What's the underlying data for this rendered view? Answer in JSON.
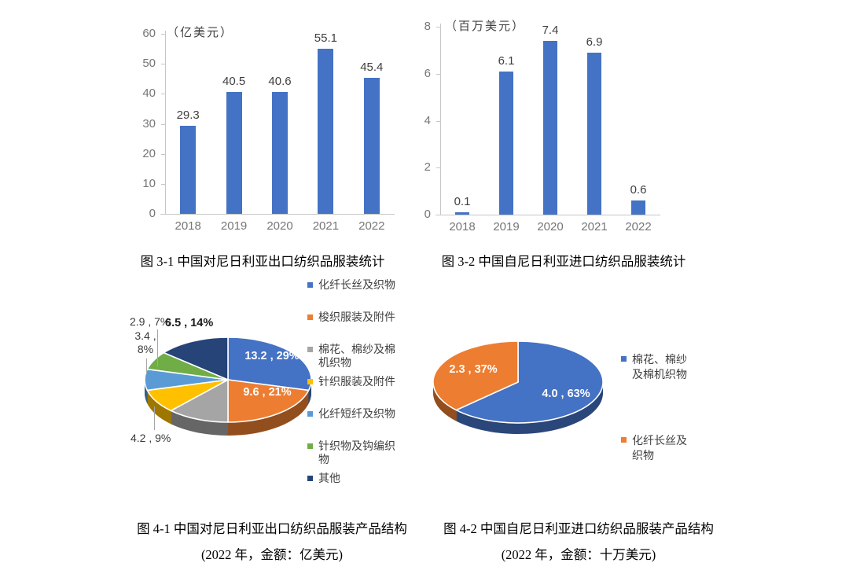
{
  "page": {
    "background": "#ffffff"
  },
  "captions": {
    "fig31": "图 3-1  中国对尼日利亚出口纺织品服装统计",
    "fig32": "图 3-2  中国自尼日利亚进口纺织品服装统计",
    "fig41_line1": "图 4-1  中国对尼日利亚出口纺织品服装产品结构",
    "fig41_line2": "(2022 年，金额：亿美元)",
    "fig42_line1": "图 4-2  中国自尼日利亚进口纺织品服装产品结构",
    "fig42_line2": "(2022 年，金额：十万美元)"
  },
  "chart_data": [
    {
      "id": "fig3-1",
      "type": "bar",
      "title": "图 3-1 中国对尼日利亚出口纺织品服装统计",
      "unit_label": "（亿美元）",
      "categories": [
        "2018",
        "2019",
        "2020",
        "2021",
        "2022"
      ],
      "values": [
        29.3,
        40.5,
        40.6,
        55.1,
        45.4
      ],
      "data_labels": [
        "29.3",
        "40.5",
        "40.6",
        "55.1",
        "45.4"
      ],
      "ylim": [
        0,
        60
      ],
      "yticks": [
        0,
        10,
        20,
        30,
        40,
        50,
        60
      ],
      "bar_color": "#4472C4",
      "grid": false,
      "legend_position": "none"
    },
    {
      "id": "fig3-2",
      "type": "bar",
      "title": "图 3-2 中国自尼日利亚进口纺织品服装统计",
      "unit_label": "（百万美元）",
      "categories": [
        "2018",
        "2019",
        "2020",
        "2021",
        "2022"
      ],
      "values": [
        0.1,
        6.1,
        7.4,
        6.9,
        0.6
      ],
      "data_labels": [
        "0.1",
        "6.1",
        "7.4",
        "6.9",
        "0.6"
      ],
      "ylim": [
        0,
        8
      ],
      "yticks": [
        0,
        2,
        4,
        6,
        8
      ],
      "bar_color": "#4472C4",
      "grid": false,
      "legend_position": "none"
    },
    {
      "id": "fig4-1",
      "type": "pie",
      "title": "图 4-1 中国对尼日利亚出口纺织品服装产品结构",
      "subtitle": "(2022 年，金额：亿美元)",
      "style": "3d",
      "legend_position": "right",
      "slices": [
        {
          "name": "化纤长丝及织物",
          "value": 13.2,
          "pct": 29,
          "color": "#4472C4",
          "label": "13.2 , 29%",
          "label_style": "inside-white"
        },
        {
          "name": "梭织服装及附件",
          "value": 9.6,
          "pct": 21,
          "color": "#ED7D31",
          "label": "9.6 , 21%",
          "label_style": "inside-white"
        },
        {
          "name": "棉花、棉纱及棉机织物",
          "value": null,
          "pct": 12,
          "color": "#A5A5A5",
          "label": "",
          "label_style": "hidden"
        },
        {
          "name": "针织服装及附件",
          "value": 4.2,
          "pct": 9,
          "color": "#FFC000",
          "label": "4.2 , 9%",
          "label_style": "outside"
        },
        {
          "name": "化纤短纤及织物",
          "value": 3.4,
          "pct": 8,
          "color": "#5B9BD5",
          "label": "3.4 , 8%",
          "label_style": "outside"
        },
        {
          "name": "针织物及钩编织物",
          "value": 2.9,
          "pct": 7,
          "color": "#70AD47",
          "label": "2.9 , 7%",
          "label_style": "outside"
        },
        {
          "name": "其他",
          "value": 6.5,
          "pct": 14,
          "color": "#264478",
          "label": "6.5 , 14%",
          "label_style": "outside-bold"
        }
      ]
    },
    {
      "id": "fig4-2",
      "type": "pie",
      "title": "图 4-2 中国自尼日利亚进口纺织品服装产品结构",
      "subtitle": "(2022 年，金额：十万美元)",
      "style": "3d",
      "legend_position": "right",
      "slices": [
        {
          "name": "棉花、棉纱及棉机织物",
          "value": 4.0,
          "pct": 63,
          "color": "#4472C4",
          "label": "4.0 , 63%",
          "label_style": "inside-white"
        },
        {
          "name": "化纤长丝及织物",
          "value": 2.3,
          "pct": 37,
          "color": "#ED7D31",
          "label": "2.3 , 37%",
          "label_style": "inside-white"
        }
      ]
    }
  ],
  "colors": {
    "bar_blue": "#4472C4",
    "axis_line": "#C6C6C6",
    "tick_text": "#767676",
    "value_label_text": "#404040",
    "legend_text": "#404040",
    "caption_text": "#000000",
    "leader_line": "#A6A6A6",
    "pie_inside_label_text": "#FFFFFF"
  }
}
